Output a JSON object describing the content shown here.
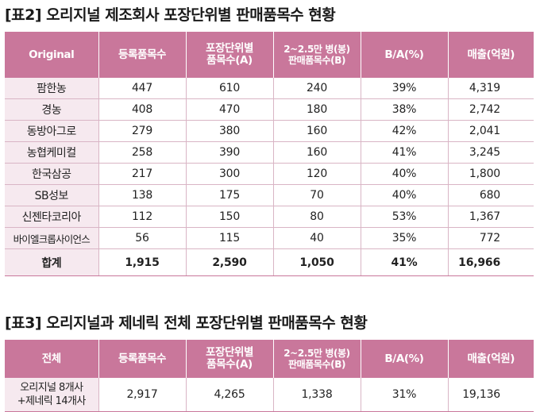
{
  "table1": {
    "title": "[표2] 오리지널 제조회사 포장단위별 판매품목수 현황",
    "headers": [
      "Original",
      "등록품목수",
      "포장단위별|품목수(A)",
      "2~2.5만 병(봉)|판매품목수(B)",
      "B/A(%)",
      "매출(억원)"
    ],
    "rows": [
      {
        "name": "팜한농",
        "reg": "447",
        "a": "610",
        "b": "240",
        "ratio": "39%",
        "sales": "4,319"
      },
      {
        "name": "경농",
        "reg": "408",
        "a": "470",
        "b": "180",
        "ratio": "38%",
        "sales": "2,742"
      },
      {
        "name": "동방아그로",
        "reg": "279",
        "a": "380",
        "b": "160",
        "ratio": "42%",
        "sales": "2,041"
      },
      {
        "name": "농협케미컬",
        "reg": "258",
        "a": "390",
        "b": "160",
        "ratio": "41%",
        "sales": "3,245"
      },
      {
        "name": "한국삼공",
        "reg": "217",
        "a": "300",
        "b": "120",
        "ratio": "40%",
        "sales": "1,800"
      },
      {
        "name": "SB성보",
        "reg": "138",
        "a": "175",
        "b": "70",
        "ratio": "40%",
        "sales": "680"
      },
      {
        "name": "신젠타코리아",
        "reg": "112",
        "a": "150",
        "b": "80",
        "ratio": "53%",
        "sales": "1,367"
      },
      {
        "name": "바이엘크롭사이언스",
        "reg": "56",
        "a": "115",
        "b": "40",
        "ratio": "35%",
        "sales": "772"
      }
    ],
    "total": {
      "name": "합계",
      "reg": "1,915",
      "a": "2,590",
      "b": "1,050",
      "ratio": "41%",
      "sales": "16,966"
    }
  },
  "table2": {
    "title": "[표3] 오리지널과 제네릭 전체 포장단위별 판매품목수 현황",
    "headers": [
      "전체",
      "등록품목수",
      "포장단위별|품목수(A)",
      "2~2.5만 병(봉)|판매품목수(B)",
      "B/A(%)",
      "매출(억원)"
    ],
    "rows": [
      {
        "name_line1": "오리지널 8개사",
        "name_line2": "+제네릭 14개사",
        "reg": "2,917",
        "a": "4,265",
        "b": "1,338",
        "ratio": "31%",
        "sales": "19,136"
      }
    ]
  }
}
